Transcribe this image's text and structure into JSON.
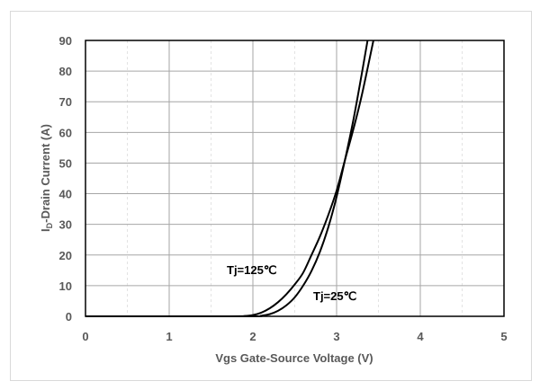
{
  "chart_data": {
    "type": "line",
    "title": "",
    "xlabel": "Vgs Gate-Source Voltage (V)",
    "ylabel_main": "I",
    "ylabel_sub": "D",
    "ylabel_rest": "-Drain Current (A)",
    "xlim": [
      0,
      5
    ],
    "ylim": [
      0,
      90
    ],
    "xticks": [
      "0",
      "1",
      "2",
      "3",
      "4",
      "5"
    ],
    "yticks": [
      "0",
      "10",
      "20",
      "30",
      "40",
      "50",
      "60",
      "70",
      "80",
      "90"
    ],
    "grid": true,
    "series": [
      {
        "name": "Tj=125℃",
        "color": "#000000",
        "x": [
          1.7,
          1.9,
          2.0,
          2.1,
          2.2,
          2.3,
          2.4,
          2.5,
          2.6,
          2.7,
          2.8,
          2.9,
          3.0,
          3.1,
          3.2,
          3.3,
          3.44
        ],
        "y": [
          0,
          0.1,
          0.4,
          1.2,
          2.6,
          4.6,
          7.2,
          10.4,
          14.2,
          20,
          26,
          33,
          41,
          51,
          61,
          72,
          90
        ]
      },
      {
        "name": "Tj=25℃",
        "color": "#000000",
        "x": [
          1.9,
          2.1,
          2.2,
          2.3,
          2.4,
          2.5,
          2.6,
          2.7,
          2.8,
          2.9,
          3.0,
          3.1,
          3.2,
          3.3,
          3.37
        ],
        "y": [
          0,
          0.2,
          0.7,
          1.8,
          3.6,
          6.2,
          10,
          14.8,
          21,
          29,
          39,
          51,
          64,
          79,
          90
        ]
      }
    ],
    "annotations": [
      "Tj=125℃",
      "Tj=25℃"
    ]
  }
}
